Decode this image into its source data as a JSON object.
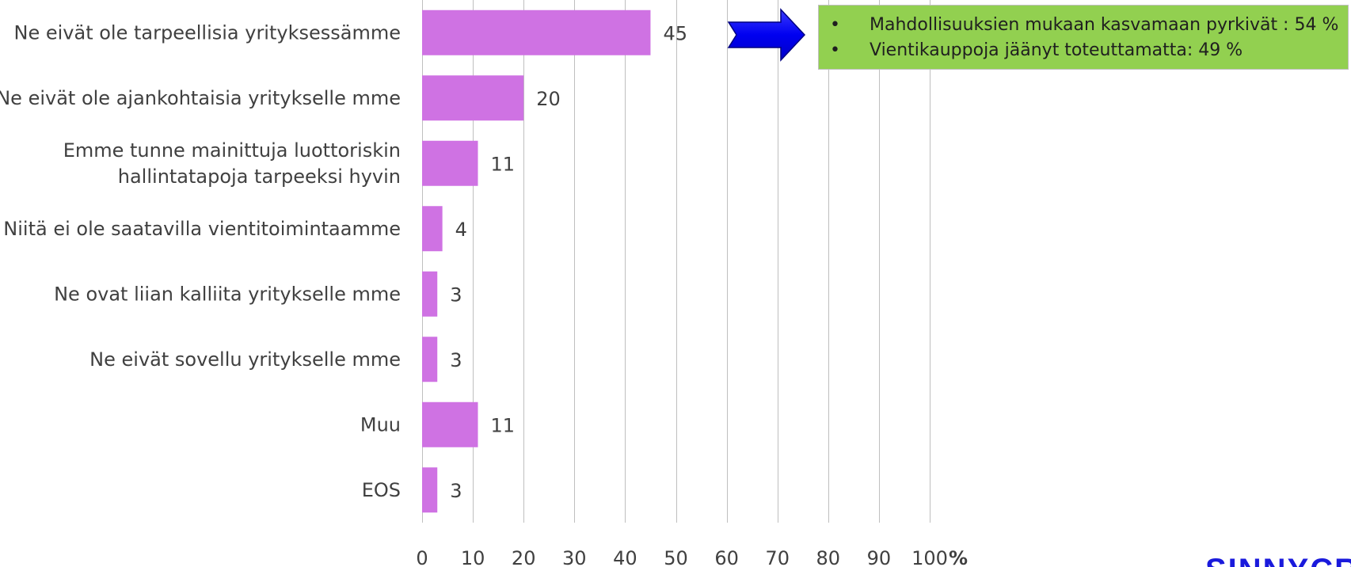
{
  "chart_data": {
    "type": "bar",
    "orientation": "horizontal",
    "categories": [
      "Ne eivät ole tarpeellisia yrityksessämme",
      "Ne eivät ole ajankohtaisia yritykselle mme",
      "Emme tunne mainittuja luottoriskin hallintatapoja tarpeeksi hyvin",
      "Niitä ei ole saatavilla vientitoimintaamme",
      "Ne ovat liian kalliita yritykselle mme",
      "Ne eivät sovellu yritykselle mme",
      "Muu",
      "EOS"
    ],
    "category_lines": [
      [
        "Ne eivät ole tarpeellisia yrityksessämme"
      ],
      [
        "Ne eivät ole ajankohtaisia yritykselle mme"
      ],
      [
        "Emme tunne mainittuja luottoriskin",
        "hallintatapoja tarpeeksi hyvin"
      ],
      [
        "Niitä ei ole saatavilla vientitoimintaamme"
      ],
      [
        "Ne ovat liian kalliita yritykselle mme"
      ],
      [
        "Ne eivät sovellu yritykselle mme"
      ],
      [
        "Muu"
      ],
      [
        "EOS"
      ]
    ],
    "values": [
      45,
      20,
      11,
      4,
      3,
      3,
      11,
      3
    ],
    "value_labels": [
      "45",
      "20",
      "11",
      "4",
      "3",
      "3",
      "11",
      "3"
    ],
    "xlim": [
      0,
      100
    ],
    "x_ticks": [
      "0",
      "10",
      "20",
      "30",
      "40",
      "50",
      "60",
      "70",
      "80",
      "90",
      "100"
    ],
    "x_unit": "%",
    "grid": "vertical",
    "bar_color": "#cf72e3",
    "grid_color": "#bfbfbf",
    "title": "",
    "xlabel": "",
    "ylabel": ""
  },
  "callout": {
    "items": [
      "Mahdollisuuksien mukaan kasvamaan pyrkivät : 54 %",
      "Vientikauppoja jäänyt toteuttamatta: 49 %"
    ],
    "bullet": "•",
    "background": "#92d050",
    "arrow_color": "#0000ff",
    "arrow_icon": "right-arrow-icon"
  },
  "logo": {
    "text": "SINNYCRA"
  }
}
